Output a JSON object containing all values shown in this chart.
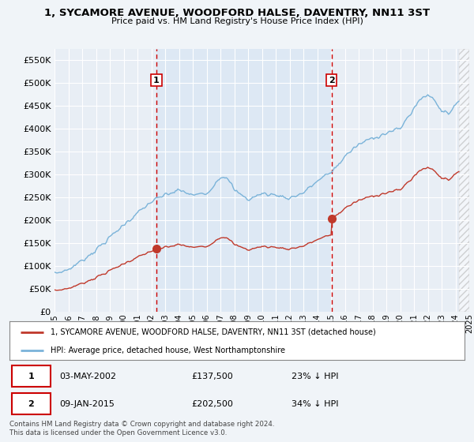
{
  "title": "1, SYCAMORE AVENUE, WOODFORD HALSE, DAVENTRY, NN11 3ST",
  "subtitle": "Price paid vs. HM Land Registry's House Price Index (HPI)",
  "hpi_color": "#7ab3d9",
  "price_color": "#c0392b",
  "legend_line1": "1, SYCAMORE AVENUE, WOODFORD HALSE, DAVENTRY, NN11 3ST (detached house)",
  "legend_line2": "HPI: Average price, detached house, West Northamptonshire",
  "table_row1": [
    "1",
    "03-MAY-2002",
    "£137,500",
    "23% ↓ HPI"
  ],
  "table_row2": [
    "2",
    "09-JAN-2015",
    "£202,500",
    "34% ↓ HPI"
  ],
  "footnote": "Contains HM Land Registry data © Crown copyright and database right 2024.\nThis data is licensed under the Open Government Licence v3.0.",
  "ylim": [
    0,
    575000
  ],
  "yticks": [
    0,
    50000,
    100000,
    150000,
    200000,
    250000,
    300000,
    350000,
    400000,
    450000,
    500000,
    550000
  ],
  "sale1_year": 2002.37,
  "sale1_price": 137500,
  "sale2_year": 2015.03,
  "sale2_price": 202500,
  "hatch_start": 2024.25,
  "xmin": 1995,
  "xmax": 2025,
  "bg_color": "#f0f4f8",
  "plot_bg": "#e8eef5",
  "between_bg": "#dde8f4"
}
